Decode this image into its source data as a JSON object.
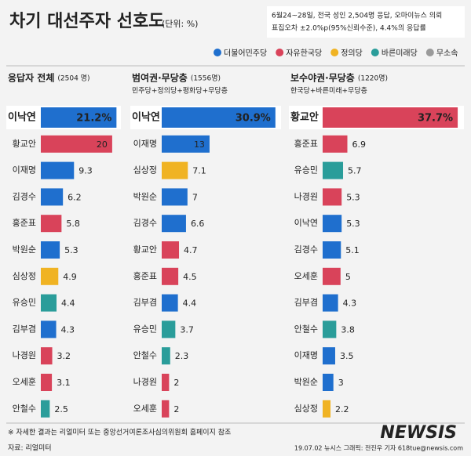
{
  "title": "차기 대선주자 선호도",
  "unit": "(단위: %)",
  "note": [
    "6월24~28일, 전국 성인 2,504명 응답, 오마이뉴스 의뢰",
    "표집오차 ±2.0%p(95%신뢰수준), 4.4%의 응답률"
  ],
  "legend": [
    {
      "name": "더불어민주당",
      "color": "#1f6fce"
    },
    {
      "name": "자유한국당",
      "color": "#d9435a"
    },
    {
      "name": "정의당",
      "color": "#f0b323"
    },
    {
      "name": "바른미래당",
      "color": "#2a9d9a"
    },
    {
      "name": "무소속",
      "color": "#9a9a9a"
    }
  ],
  "chart_data": [
    {
      "type": "bar",
      "title": "응답자 전체",
      "title_color": "#222222",
      "sample": "(2504 명)",
      "categories": [
        "이낙연",
        "황교안",
        "이재명",
        "김경수",
        "홍준표",
        "박원순",
        "심상정",
        "유승민",
        "김부겸",
        "나경원",
        "오세훈",
        "안철수"
      ],
      "values": [
        21.2,
        20,
        9.3,
        6.2,
        5.8,
        5.3,
        4.9,
        4.4,
        4.3,
        3.2,
        3.1,
        2.5
      ],
      "value_labels": [
        "21.2%",
        "20",
        "9.3",
        "6.2",
        "5.8",
        "5.3",
        "4.9",
        "4.4",
        "4.3",
        "3.2",
        "3.1",
        "2.5"
      ],
      "colors": [
        "#1f6fce",
        "#d9435a",
        "#1f6fce",
        "#1f6fce",
        "#d9435a",
        "#1f6fce",
        "#f0b323",
        "#2a9d9a",
        "#1f6fce",
        "#d9435a",
        "#d9435a",
        "#2a9d9a"
      ],
      "xlim": [
        0,
        22
      ]
    },
    {
      "type": "bar",
      "title": "범여권·무당층",
      "title_color": "#1f6fce",
      "sample": "(1556명)",
      "subtitle": "민주당+정의당+평화당+무당층",
      "categories": [
        "이낙연",
        "이재명",
        "심상정",
        "박원순",
        "김경수",
        "황교안",
        "홍준표",
        "김부겸",
        "유승민",
        "안철수",
        "나경원",
        "오세훈"
      ],
      "values": [
        30.9,
        13,
        7.1,
        7,
        6.6,
        4.7,
        4.5,
        4.4,
        3.7,
        2.3,
        2,
        2
      ],
      "value_labels": [
        "30.9%",
        "13",
        "7.1",
        "7",
        "6.6",
        "4.7",
        "4.5",
        "4.4",
        "3.7",
        "2.3",
        "2",
        "2"
      ],
      "colors": [
        "#1f6fce",
        "#1f6fce",
        "#f0b323",
        "#1f6fce",
        "#1f6fce",
        "#d9435a",
        "#d9435a",
        "#1f6fce",
        "#2a9d9a",
        "#2a9d9a",
        "#d9435a",
        "#d9435a"
      ],
      "xlim": [
        0,
        32
      ]
    },
    {
      "type": "bar",
      "title": "보수야권·무당층",
      "title_color": "#d9435a",
      "sample": "(1220명)",
      "subtitle": "한국당+바른미래+무당층",
      "categories": [
        "황교안",
        "홍준표",
        "유승민",
        "나경원",
        "이낙연",
        "김경수",
        "오세훈",
        "김부겸",
        "안철수",
        "이재명",
        "박원순",
        "심상정"
      ],
      "values": [
        37.7,
        6.9,
        5.7,
        5.3,
        5.3,
        5.1,
        5,
        4.3,
        3.8,
        3.5,
        3,
        2.2
      ],
      "value_labels": [
        "37.7%",
        "6.9",
        "5.7",
        "5.3",
        "5.3",
        "5.1",
        "5",
        "4.3",
        "3.8",
        "3.5",
        "3",
        "2.2"
      ],
      "colors": [
        "#d9435a",
        "#d9435a",
        "#2a9d9a",
        "#d9435a",
        "#1f6fce",
        "#1f6fce",
        "#d9435a",
        "#1f6fce",
        "#2a9d9a",
        "#1f6fce",
        "#1f6fce",
        "#f0b323"
      ],
      "xlim": [
        0,
        39
      ]
    }
  ],
  "footnote": "※ 자세한 결과는 리얼미터 또는 중앙선거여론조사심의위원회 홈페이지 참조",
  "source": "자료: 리얼미터",
  "credit": "19.07.02 뉴시스 그래픽: 전진우 기자 618tue@newsis.com",
  "watermark": "NEWSIS"
}
